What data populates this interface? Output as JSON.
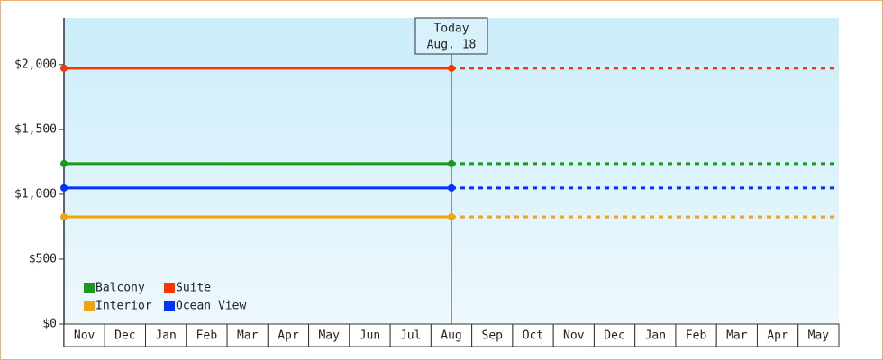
{
  "chart_data": {
    "type": "line",
    "categories": [
      "Nov",
      "Dec",
      "Jan",
      "Feb",
      "Mar",
      "Apr",
      "May",
      "Jun",
      "Jul",
      "Aug",
      "Sep",
      "Oct",
      "Nov",
      "Dec",
      "Jan",
      "Feb",
      "Mar",
      "Apr",
      "May"
    ],
    "series": [
      {
        "name": "Balcony",
        "color": "#1a9a1a",
        "value": 1236
      },
      {
        "name": "Suite",
        "color": "#ff3300",
        "value": 1972
      },
      {
        "name": "Interior",
        "color": "#f5a30a",
        "value": 826
      },
      {
        "name": "Ocean View",
        "color": "#0033ff",
        "value": 1049
      }
    ],
    "ylim": [
      0,
      2360
    ],
    "yticks": [
      {
        "value": 0,
        "label": "$0"
      },
      {
        "value": 500,
        "label": "$500"
      },
      {
        "value": 1000,
        "label": "$1,000"
      },
      {
        "value": 1500,
        "label": "$1,500"
      },
      {
        "value": 2000,
        "label": "$2,000"
      }
    ],
    "today": {
      "lines": [
        "Today",
        "Aug. 18"
      ],
      "category": 9
    },
    "legend": "bottom-left"
  }
}
